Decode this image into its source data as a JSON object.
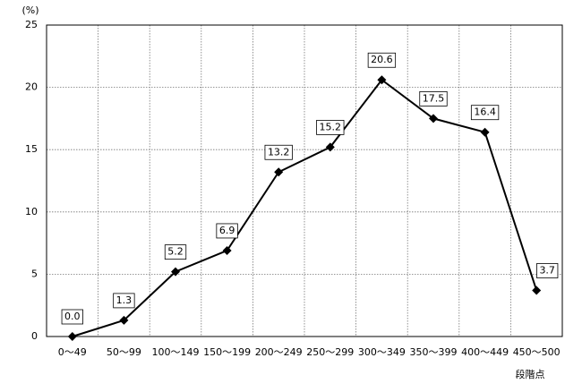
{
  "chart_data": {
    "type": "line",
    "y_label": "(%)",
    "x_label": "段階点",
    "categories": [
      "0～49",
      "50～99",
      "100～149",
      "150～199",
      "200～249",
      "250～299",
      "300～349",
      "350～399",
      "400～449",
      "450～500"
    ],
    "values": [
      0,
      1.3,
      5.2,
      6.9,
      13.2,
      15.2,
      20.6,
      17.5,
      16.4,
      3.7
    ],
    "value_labels": [
      "0.0",
      "1.3",
      "5.2",
      "6.9",
      "13.2",
      "15.2",
      "20.6",
      "17.5",
      "16.4",
      "3.7"
    ],
    "color": "#000000",
    "ylim": [
      0,
      25
    ],
    "yticks": [
      0,
      5,
      10,
      15,
      20,
      25
    ],
    "grid": true
  }
}
